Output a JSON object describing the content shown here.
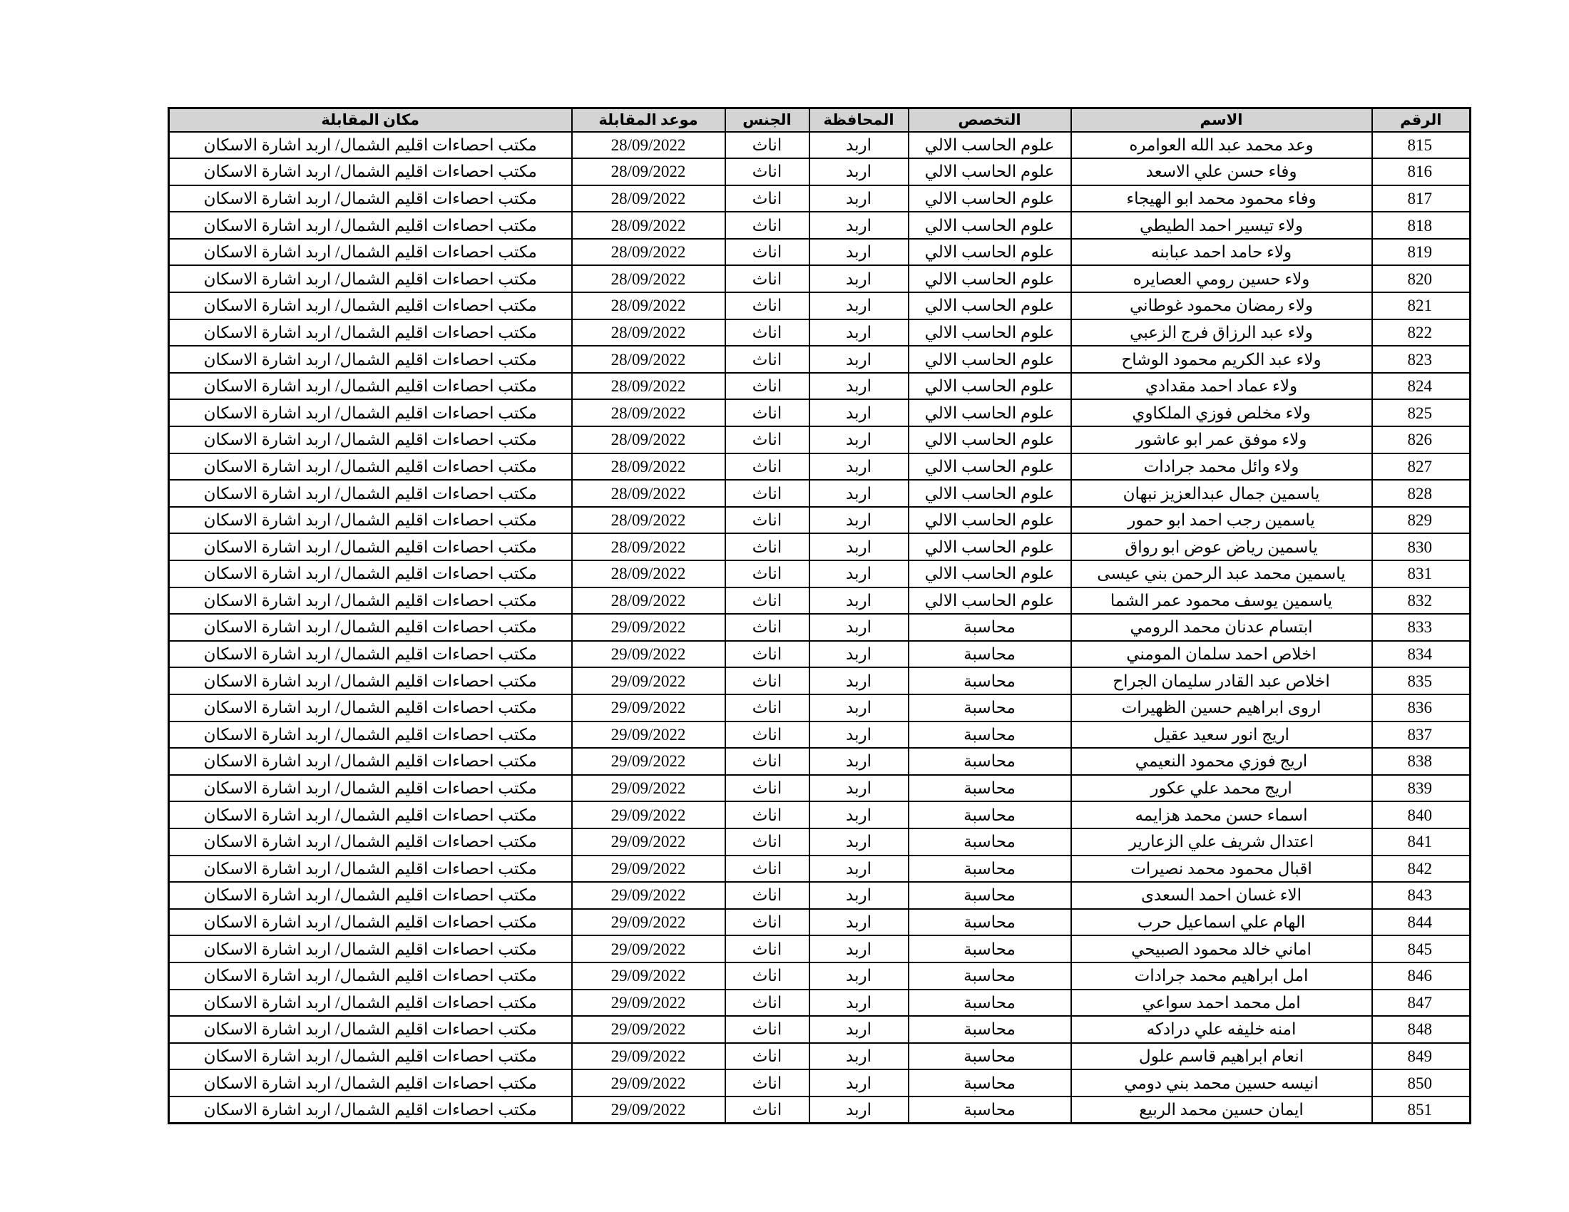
{
  "colors": {
    "header_bg": "#d4d4d4",
    "border": "#000000",
    "text": "#000000",
    "page_bg": "#ffffff"
  },
  "table": {
    "columns": [
      {
        "key": "num",
        "label": "الرقم"
      },
      {
        "key": "name",
        "label": "الاسم"
      },
      {
        "key": "spec",
        "label": "التخصص"
      },
      {
        "key": "gov",
        "label": "المحافظة"
      },
      {
        "key": "gender",
        "label": "الجنس"
      },
      {
        "key": "date",
        "label": "موعد المقابلة"
      },
      {
        "key": "location",
        "label": "مكان المقابلة"
      }
    ],
    "shared": {
      "governorate": "اربد",
      "gender": "اناث",
      "location": "مكتب احصاءات اقليم الشمال/ اربد اشارة الاسكان"
    },
    "rows": [
      {
        "num": "815",
        "name": "وعد محمد عبد الله العوامره",
        "spec": "علوم الحاسب الالي",
        "date": "28/09/2022"
      },
      {
        "num": "816",
        "name": "وفاء حسن علي الاسعد",
        "spec": "علوم الحاسب الالي",
        "date": "28/09/2022"
      },
      {
        "num": "817",
        "name": "وفاء محمود محمد ابو الهيجاء",
        "spec": "علوم الحاسب الالي",
        "date": "28/09/2022"
      },
      {
        "num": "818",
        "name": "ولاء تيسير احمد الطيطي",
        "spec": "علوم الحاسب الالي",
        "date": "28/09/2022"
      },
      {
        "num": "819",
        "name": "ولاء حامد احمد عبابنه",
        "spec": "علوم الحاسب الالي",
        "date": "28/09/2022"
      },
      {
        "num": "820",
        "name": "ولاء حسين رومي العصايره",
        "spec": "علوم الحاسب الالي",
        "date": "28/09/2022"
      },
      {
        "num": "821",
        "name": "ولاء رمضان محمود غوطاني",
        "spec": "علوم الحاسب الالي",
        "date": "28/09/2022"
      },
      {
        "num": "822",
        "name": "ولاء عبد الرزاق فرج الزعبي",
        "spec": "علوم الحاسب الالي",
        "date": "28/09/2022"
      },
      {
        "num": "823",
        "name": "ولاء عبد الكريم محمود الوشاح",
        "spec": "علوم الحاسب الالي",
        "date": "28/09/2022"
      },
      {
        "num": "824",
        "name": "ولاء عماد احمد مقدادي",
        "spec": "علوم الحاسب الالي",
        "date": "28/09/2022"
      },
      {
        "num": "825",
        "name": "ولاء مخلص فوزي الملكاوي",
        "spec": "علوم الحاسب الالي",
        "date": "28/09/2022"
      },
      {
        "num": "826",
        "name": "ولاء موفق عمر ابو عاشور",
        "spec": "علوم الحاسب الالي",
        "date": "28/09/2022"
      },
      {
        "num": "827",
        "name": "ولاء وائل محمد جرادات",
        "spec": "علوم الحاسب الالي",
        "date": "28/09/2022"
      },
      {
        "num": "828",
        "name": "ياسمين جمال عبدالعزيز نبهان",
        "spec": "علوم الحاسب الالي",
        "date": "28/09/2022"
      },
      {
        "num": "829",
        "name": "ياسمين رجب احمد ابو حمور",
        "spec": "علوم الحاسب الالي",
        "date": "28/09/2022"
      },
      {
        "num": "830",
        "name": "ياسمين رياض عوض ابو رواق",
        "spec": "علوم الحاسب الالي",
        "date": "28/09/2022"
      },
      {
        "num": "831",
        "name": "ياسمين محمد عبد الرحمن بني عيسى",
        "spec": "علوم الحاسب الالي",
        "date": "28/09/2022"
      },
      {
        "num": "832",
        "name": "ياسمين يوسف محمود عمر الشما",
        "spec": "علوم الحاسب الالي",
        "date": "28/09/2022"
      },
      {
        "num": "833",
        "name": "ابتسام عدنان محمد الرومي",
        "spec": "محاسبة",
        "date": "29/09/2022"
      },
      {
        "num": "834",
        "name": "اخلاص احمد سلمان المومني",
        "spec": "محاسبة",
        "date": "29/09/2022"
      },
      {
        "num": "835",
        "name": "اخلاص عبد القادر سليمان الجراح",
        "spec": "محاسبة",
        "date": "29/09/2022"
      },
      {
        "num": "836",
        "name": "اروى ابراهيم حسين الظهيرات",
        "spec": "محاسبة",
        "date": "29/09/2022"
      },
      {
        "num": "837",
        "name": "اريج انور سعيد عقيل",
        "spec": "محاسبة",
        "date": "29/09/2022"
      },
      {
        "num": "838",
        "name": "اريج فوزي محمود النعيمي",
        "spec": "محاسبة",
        "date": "29/09/2022"
      },
      {
        "num": "839",
        "name": "اريج محمد علي عكور",
        "spec": "محاسبة",
        "date": "29/09/2022"
      },
      {
        "num": "840",
        "name": "اسماء حسن محمد هزايمه",
        "spec": "محاسبة",
        "date": "29/09/2022"
      },
      {
        "num": "841",
        "name": "اعتدال شريف علي الزعارير",
        "spec": "محاسبة",
        "date": "29/09/2022"
      },
      {
        "num": "842",
        "name": "اقبال محمود محمد نصيرات",
        "spec": "محاسبة",
        "date": "29/09/2022"
      },
      {
        "num": "843",
        "name": "الاء غسان احمد السعدى",
        "spec": "محاسبة",
        "date": "29/09/2022"
      },
      {
        "num": "844",
        "name": "الهام علي اسماعيل حرب",
        "spec": "محاسبة",
        "date": "29/09/2022"
      },
      {
        "num": "845",
        "name": "اماني خالد محمود الصبيحي",
        "spec": "محاسبة",
        "date": "29/09/2022"
      },
      {
        "num": "846",
        "name": "امل ابراهيم محمد جرادات",
        "spec": "محاسبة",
        "date": "29/09/2022"
      },
      {
        "num": "847",
        "name": "امل محمد احمد سواعي",
        "spec": "محاسبة",
        "date": "29/09/2022"
      },
      {
        "num": "848",
        "name": "امنه خليفه علي درادكه",
        "spec": "محاسبة",
        "date": "29/09/2022"
      },
      {
        "num": "849",
        "name": "انعام ابراهيم قاسم علول",
        "spec": "محاسبة",
        "date": "29/09/2022"
      },
      {
        "num": "850",
        "name": "انيسه حسين محمد بني دومي",
        "spec": "محاسبة",
        "date": "29/09/2022"
      },
      {
        "num": "851",
        "name": "ايمان حسين محمد الربيع",
        "spec": "محاسبة",
        "date": "29/09/2022"
      }
    ]
  }
}
